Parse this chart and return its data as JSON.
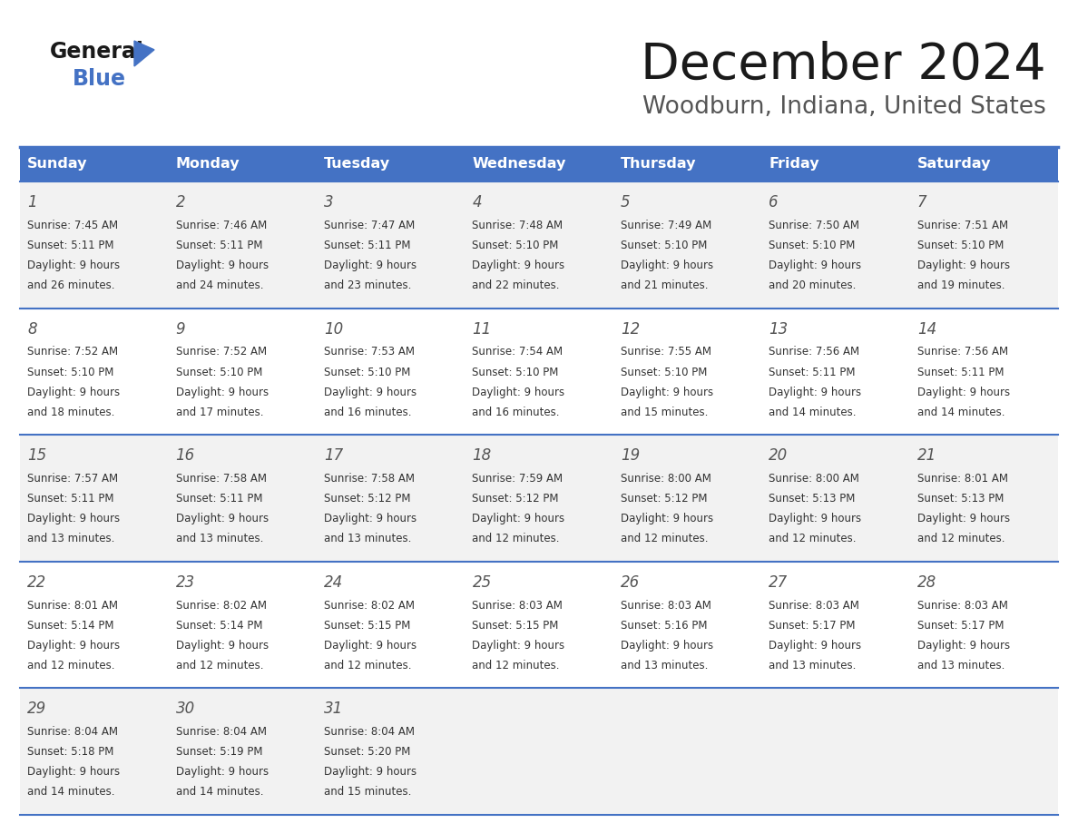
{
  "title": "December 2024",
  "subtitle": "Woodburn, Indiana, United States",
  "days_of_week": [
    "Sunday",
    "Monday",
    "Tuesday",
    "Wednesday",
    "Thursday",
    "Friday",
    "Saturday"
  ],
  "header_bg": "#4472C4",
  "header_text": "#FFFFFF",
  "row_bg_odd": "#F2F2F2",
  "row_bg_even": "#FFFFFF",
  "separator_color": "#4472C4",
  "title_color": "#1a1a1a",
  "subtitle_color": "#555555",
  "cell_text_color": "#333333",
  "day_number_color": "#555555",
  "logo_general_color": "#1a1a1a",
  "logo_blue_color": "#4472C4",
  "calendar_data": [
    [
      {
        "day": 1,
        "sunrise": "7:45 AM",
        "sunset": "5:11 PM",
        "daylight": "9 hours and 26 minutes"
      },
      {
        "day": 2,
        "sunrise": "7:46 AM",
        "sunset": "5:11 PM",
        "daylight": "9 hours and 24 minutes"
      },
      {
        "day": 3,
        "sunrise": "7:47 AM",
        "sunset": "5:11 PM",
        "daylight": "9 hours and 23 minutes"
      },
      {
        "day": 4,
        "sunrise": "7:48 AM",
        "sunset": "5:10 PM",
        "daylight": "9 hours and 22 minutes"
      },
      {
        "day": 5,
        "sunrise": "7:49 AM",
        "sunset": "5:10 PM",
        "daylight": "9 hours and 21 minutes"
      },
      {
        "day": 6,
        "sunrise": "7:50 AM",
        "sunset": "5:10 PM",
        "daylight": "9 hours and 20 minutes"
      },
      {
        "day": 7,
        "sunrise": "7:51 AM",
        "sunset": "5:10 PM",
        "daylight": "9 hours and 19 minutes"
      }
    ],
    [
      {
        "day": 8,
        "sunrise": "7:52 AM",
        "sunset": "5:10 PM",
        "daylight": "9 hours and 18 minutes"
      },
      {
        "day": 9,
        "sunrise": "7:52 AM",
        "sunset": "5:10 PM",
        "daylight": "9 hours and 17 minutes"
      },
      {
        "day": 10,
        "sunrise": "7:53 AM",
        "sunset": "5:10 PM",
        "daylight": "9 hours and 16 minutes"
      },
      {
        "day": 11,
        "sunrise": "7:54 AM",
        "sunset": "5:10 PM",
        "daylight": "9 hours and 16 minutes"
      },
      {
        "day": 12,
        "sunrise": "7:55 AM",
        "sunset": "5:10 PM",
        "daylight": "9 hours and 15 minutes"
      },
      {
        "day": 13,
        "sunrise": "7:56 AM",
        "sunset": "5:11 PM",
        "daylight": "9 hours and 14 minutes"
      },
      {
        "day": 14,
        "sunrise": "7:56 AM",
        "sunset": "5:11 PM",
        "daylight": "9 hours and 14 minutes"
      }
    ],
    [
      {
        "day": 15,
        "sunrise": "7:57 AM",
        "sunset": "5:11 PM",
        "daylight": "9 hours and 13 minutes"
      },
      {
        "day": 16,
        "sunrise": "7:58 AM",
        "sunset": "5:11 PM",
        "daylight": "9 hours and 13 minutes"
      },
      {
        "day": 17,
        "sunrise": "7:58 AM",
        "sunset": "5:12 PM",
        "daylight": "9 hours and 13 minutes"
      },
      {
        "day": 18,
        "sunrise": "7:59 AM",
        "sunset": "5:12 PM",
        "daylight": "9 hours and 12 minutes"
      },
      {
        "day": 19,
        "sunrise": "8:00 AM",
        "sunset": "5:12 PM",
        "daylight": "9 hours and 12 minutes"
      },
      {
        "day": 20,
        "sunrise": "8:00 AM",
        "sunset": "5:13 PM",
        "daylight": "9 hours and 12 minutes"
      },
      {
        "day": 21,
        "sunrise": "8:01 AM",
        "sunset": "5:13 PM",
        "daylight": "9 hours and 12 minutes"
      }
    ],
    [
      {
        "day": 22,
        "sunrise": "8:01 AM",
        "sunset": "5:14 PM",
        "daylight": "9 hours and 12 minutes"
      },
      {
        "day": 23,
        "sunrise": "8:02 AM",
        "sunset": "5:14 PM",
        "daylight": "9 hours and 12 minutes"
      },
      {
        "day": 24,
        "sunrise": "8:02 AM",
        "sunset": "5:15 PM",
        "daylight": "9 hours and 12 minutes"
      },
      {
        "day": 25,
        "sunrise": "8:03 AM",
        "sunset": "5:15 PM",
        "daylight": "9 hours and 12 minutes"
      },
      {
        "day": 26,
        "sunrise": "8:03 AM",
        "sunset": "5:16 PM",
        "daylight": "9 hours and 13 minutes"
      },
      {
        "day": 27,
        "sunrise": "8:03 AM",
        "sunset": "5:17 PM",
        "daylight": "9 hours and 13 minutes"
      },
      {
        "day": 28,
        "sunrise": "8:03 AM",
        "sunset": "5:17 PM",
        "daylight": "9 hours and 13 minutes"
      }
    ],
    [
      {
        "day": 29,
        "sunrise": "8:04 AM",
        "sunset": "5:18 PM",
        "daylight": "9 hours and 14 minutes"
      },
      {
        "day": 30,
        "sunrise": "8:04 AM",
        "sunset": "5:19 PM",
        "daylight": "9 hours and 14 minutes"
      },
      {
        "day": 31,
        "sunrise": "8:04 AM",
        "sunset": "5:20 PM",
        "daylight": "9 hours and 15 minutes"
      },
      null,
      null,
      null,
      null
    ]
  ]
}
